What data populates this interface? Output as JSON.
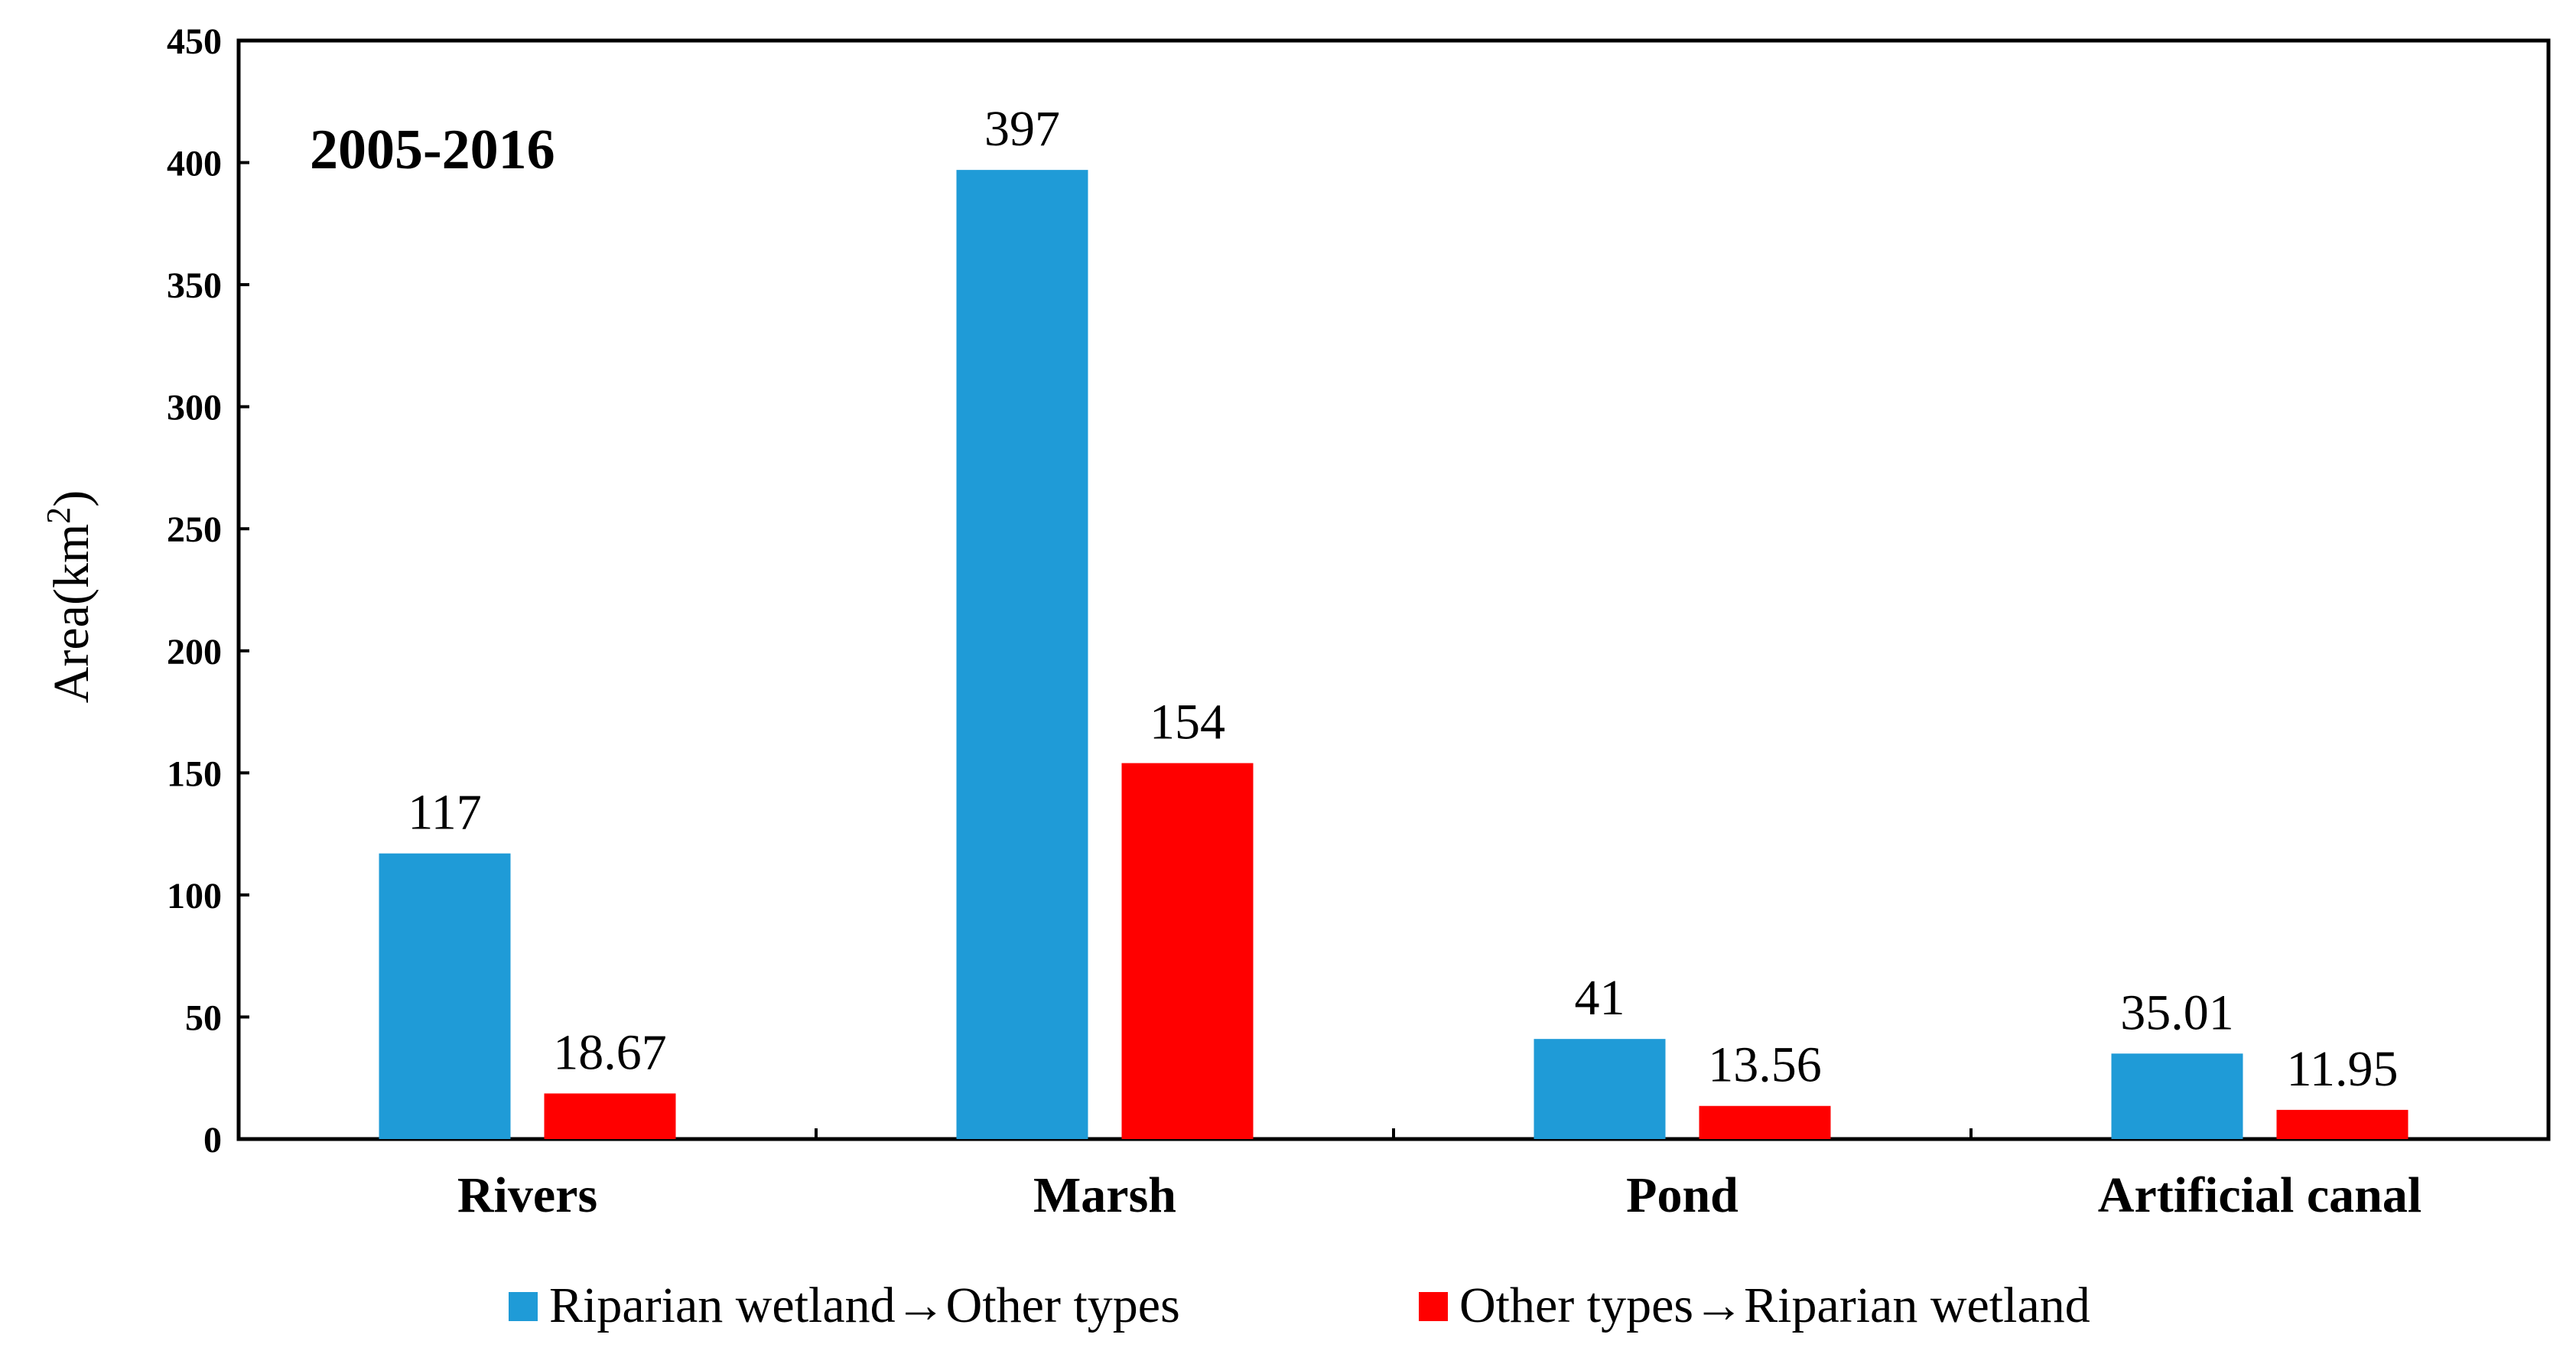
{
  "chart_data": {
    "type": "bar",
    "annotation": "2005-2016",
    "ylabel": "Area(km",
    "ylabel_superscript": "2",
    "ylabel_suffix": ")",
    "ylim": [
      0,
      450
    ],
    "yticks": [
      "0",
      "50",
      "100",
      "150",
      "200",
      "250",
      "300",
      "350",
      "400",
      "450"
    ],
    "categories": [
      "Rivers",
      "Marsh",
      "Pond",
      "Artificial canal"
    ],
    "series": [
      {
        "name": "Riparian  wetland→Other types",
        "color": "#1f9bd7",
        "values": [
          117,
          397,
          41,
          35.01
        ],
        "labels": [
          "117",
          "397",
          "41",
          "35.01"
        ]
      },
      {
        "name": "Other types→Riparian  wetland",
        "color": "#ff0000",
        "values": [
          18.67,
          154,
          13.56,
          11.95
        ],
        "labels": [
          "18.67",
          "154",
          "13.56",
          "11.95"
        ]
      }
    ],
    "grid": false,
    "legend_position": "bottom"
  }
}
